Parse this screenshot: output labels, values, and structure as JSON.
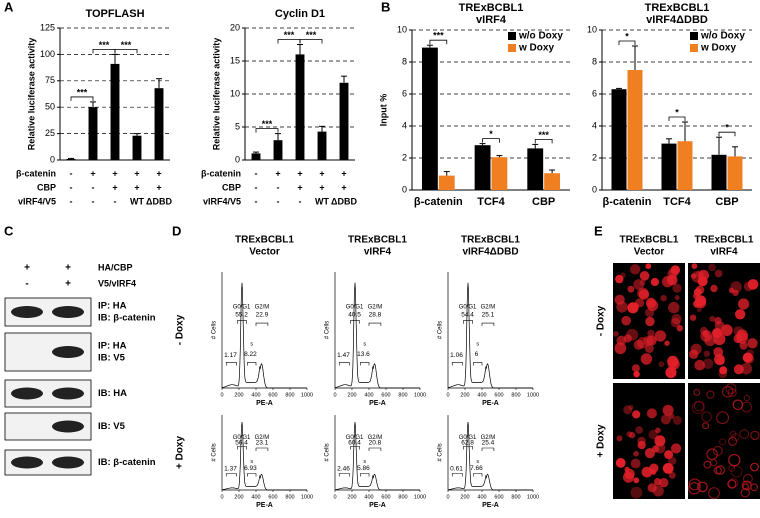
{
  "panel_labels": [
    "A",
    "B",
    "C",
    "D",
    "E"
  ],
  "chart_data": [
    {
      "type": "bar",
      "title": "TOPFLASH",
      "ylabel": "Relative luciferase activity",
      "categories": [
        null,
        null,
        null,
        null,
        null
      ],
      "series": [
        {
          "color": "#000000",
          "values": [
            1,
            50,
            91,
            23,
            68
          ],
          "errors": [
            0.5,
            5,
            9,
            2,
            9
          ]
        }
      ],
      "ylim": [
        0,
        125
      ],
      "yticks": [
        0,
        25,
        50,
        75,
        100,
        125
      ],
      "grid": true,
      "conditions": [
        {
          "name": "β-catenin",
          "values": [
            "-",
            "+",
            "+",
            "+",
            "+"
          ]
        },
        {
          "name": "CBP",
          "values": [
            "-",
            "-",
            "+",
            "+",
            "+"
          ]
        },
        {
          "name": "vIRF4/V5",
          "values": [
            "-",
            "-",
            "-",
            "WT",
            "ΔDBD"
          ]
        }
      ],
      "annotations": [
        "***",
        "***",
        "***"
      ]
    },
    {
      "type": "bar",
      "title": "Cyclin D1",
      "ylabel": "Relative luciferase activity",
      "categories": [
        null,
        null,
        null,
        null,
        null
      ],
      "series": [
        {
          "color": "#000000",
          "values": [
            1,
            3,
            16,
            4.3,
            11.7
          ],
          "errors": [
            0.2,
            1,
            1.5,
            0.8,
            1
          ]
        }
      ],
      "ylim": [
        0,
        20
      ],
      "yticks": [
        0,
        5,
        10,
        15,
        20
      ],
      "grid": true,
      "conditions": [
        {
          "name": "β-catenin",
          "values": [
            "-",
            "+",
            "+",
            "+",
            "+"
          ]
        },
        {
          "name": "CBP",
          "values": [
            "-",
            "-",
            "+",
            "+",
            "+"
          ]
        },
        {
          "name": "vIRF4/V5",
          "values": [
            "-",
            "-",
            "-",
            "WT",
            "ΔDBD"
          ]
        }
      ],
      "annotations": [
        "***",
        "***",
        "***"
      ]
    },
    {
      "type": "bar",
      "title": "TRExBCBL1",
      "subtitle": "vIRF4",
      "ylabel": "Input %",
      "categories": [
        "β-catenin",
        "TCF4",
        "CBP"
      ],
      "series": [
        {
          "name": "w/o Doxy",
          "color": "#000000",
          "values": [
            8.9,
            2.8,
            2.6
          ],
          "errors": [
            0.15,
            0.1,
            0.25
          ]
        },
        {
          "name": "w Doxy",
          "color": "#f07f22",
          "values": [
            0.9,
            2.05,
            1.05
          ],
          "errors": [
            0.25,
            0.1,
            0.2
          ]
        }
      ],
      "ylim": [
        0,
        10
      ],
      "yticks": [
        0,
        2,
        4,
        6,
        8,
        10
      ],
      "grid": true,
      "legend": "upper right",
      "annotations": [
        "***",
        "*",
        "***"
      ]
    },
    {
      "type": "bar",
      "title": "TRExBCBL1",
      "subtitle": "vIRF4ΔDBD",
      "categories": [
        "β-catenin",
        "TCF4",
        "CBP"
      ],
      "series": [
        {
          "name": "w/o Doxy",
          "color": "#000000",
          "values": [
            6.3,
            2.9,
            2.2
          ],
          "errors": [
            0.05,
            0.3,
            1.1
          ]
        },
        {
          "name": "w Doxy",
          "color": "#f07f22",
          "values": [
            7.5,
            3.05,
            2.1
          ],
          "errors": [
            1.5,
            1.2,
            0.6
          ]
        }
      ],
      "ylim": [
        0,
        10
      ],
      "yticks": [
        0,
        2,
        4,
        6,
        8,
        10
      ],
      "grid": true,
      "legend": "upper right",
      "annotations": [
        "*",
        "*",
        "*"
      ]
    }
  ],
  "blot": {
    "lanes": [
      {
        "name": "HA/CBP",
        "values": [
          "+",
          "+"
        ]
      },
      {
        "name": "V5/vIRF4",
        "values": [
          "-",
          "+"
        ]
      }
    ],
    "rows": [
      [
        "IP: HA",
        "IB: β-catenin"
      ],
      [
        "IP: HA",
        "IB: V5"
      ],
      [
        "IB: HA"
      ],
      [
        "IB: V5"
      ],
      [
        "IB: β-catenin"
      ]
    ]
  },
  "flow": {
    "columns": [
      [
        "TRExBCBL1",
        "Vector"
      ],
      [
        "TRExBCBL1",
        "vIRF4"
      ],
      [
        "TRExBCBL1",
        "vIRF4ΔDBD"
      ]
    ],
    "rows": [
      "- Doxy",
      "+ Doxy"
    ],
    "ylabel": "# Cells",
    "xlabel": "PE-A",
    "xticks": [
      0,
      200,
      400,
      600,
      800,
      1000
    ],
    "gates": [
      "G0/G1",
      "s",
      "G2/M"
    ],
    "percentages": [
      [
        [
          1.17,
          55.2,
          8.22,
          22.9
        ],
        [
          1.47,
          40.5,
          13.6,
          28.8
        ],
        [
          1.06,
          54.4,
          6,
          25.1
        ]
      ],
      [
        [
          1.37,
          56.4,
          6.93,
          23.1
        ],
        [
          2.46,
          60.4,
          5.86,
          20.8
        ],
        [
          0.61,
          62.8,
          7.66,
          25.4
        ]
      ]
    ]
  },
  "microscopy": {
    "columns": [
      [
        "TRExBCBL1",
        "Vector"
      ],
      [
        "TRExBCBL1",
        "vIRF4"
      ]
    ],
    "rows": [
      "- Doxy",
      "+ Doxy"
    ]
  }
}
